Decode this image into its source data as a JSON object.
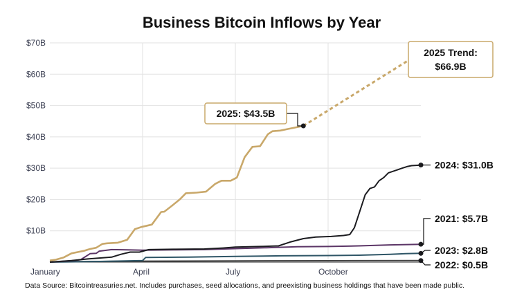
{
  "chart_data": {
    "type": "line",
    "title": "Business Bitcoin Inflows by Year",
    "source_note": "Data Source: Bitcointreasuries.net. Includes purchases, seed allocations, and preexisting business holdings that have been made public.",
    "x_domain": [
      0,
      12
    ],
    "ylim": [
      0,
      70
    ],
    "y_ticks": [
      {
        "value": 10,
        "label": "$10B"
      },
      {
        "value": 20,
        "label": "$20B"
      },
      {
        "value": 30,
        "label": "$30B"
      },
      {
        "value": 40,
        "label": "$40B"
      },
      {
        "value": 50,
        "label": "$50B"
      },
      {
        "value": 60,
        "label": "$60B"
      },
      {
        "value": 70,
        "label": "$70B"
      }
    ],
    "x_ticks": [
      {
        "value": 0,
        "label": "January"
      },
      {
        "value": 3,
        "label": "April"
      },
      {
        "value": 6,
        "label": "July"
      },
      {
        "value": 9,
        "label": "October"
      }
    ],
    "vertical_grid": [
      3,
      6,
      9
    ],
    "series": [
      {
        "name": "2025",
        "color": "#c9a86a",
        "x": [
          0,
          0.2,
          0.45,
          0.7,
          0.9,
          1.1,
          1.3,
          1.5,
          1.7,
          1.85,
          2.0,
          2.2,
          2.5,
          2.75,
          2.95,
          3.3,
          3.6,
          3.7,
          3.95,
          4.2,
          4.4,
          4.75,
          5.05,
          5.35,
          5.55,
          5.85,
          6.05,
          6.3,
          6.55,
          6.8,
          7.05,
          7.2,
          7.45,
          7.7,
          8.2
        ],
        "values": [
          0.5,
          0.8,
          1.5,
          2.8,
          3.2,
          3.6,
          4.2,
          4.6,
          5.8,
          6.0,
          6.1,
          6.2,
          7.1,
          10.5,
          11.2,
          12.0,
          16.0,
          16.1,
          18.0,
          20.0,
          22.0,
          22.2,
          22.5,
          25.0,
          26.0,
          26.0,
          27.0,
          33.5,
          36.8,
          37.0,
          40.8,
          41.8,
          42.0,
          42.5,
          43.5
        ],
        "end_label": "2025: $43.5B",
        "callout_label": "2025 Trend:",
        "callout_value": "$66.9B",
        "trend": {
          "x": [
            8.2,
            12
          ],
          "values": [
            43.5,
            66.9
          ]
        }
      },
      {
        "name": "2024",
        "color": "#1c1c20",
        "x": [
          0,
          0.7,
          1.2,
          1.6,
          2.0,
          2.3,
          2.6,
          2.9,
          3.2,
          4.0,
          5.0,
          5.6,
          6.0,
          6.8,
          7.4,
          7.8,
          8.2,
          8.6,
          9.1,
          9.5,
          9.7,
          9.85,
          10.0,
          10.2,
          10.35,
          10.5,
          10.65,
          10.8,
          10.95,
          11.1,
          11.25,
          11.4,
          11.55,
          11.7,
          11.85,
          12.0
        ],
        "values": [
          0,
          0.5,
          1.0,
          1.3,
          1.6,
          2.5,
          3.2,
          3.2,
          4.0,
          4.1,
          4.2,
          4.5,
          4.8,
          5.0,
          5.2,
          6.5,
          7.5,
          8.0,
          8.2,
          8.5,
          8.8,
          11.0,
          15.5,
          21.5,
          23.5,
          24.0,
          26.0,
          27.0,
          28.5,
          29.0,
          29.5,
          30.0,
          30.5,
          30.8,
          30.9,
          31.0
        ],
        "end_label": "2024: $31.0B"
      },
      {
        "name": "2021",
        "color": "#5b3566",
        "x": [
          0,
          0.8,
          1.0,
          1.3,
          1.5,
          1.6,
          2.0,
          2.5,
          3.0,
          4.0,
          5.0,
          6.0,
          7.0,
          8.0,
          9.0,
          10.0,
          11.0,
          12.0
        ],
        "values": [
          0,
          0.5,
          0.8,
          2.7,
          2.8,
          3.5,
          4.0,
          3.9,
          3.8,
          3.9,
          4.0,
          4.3,
          4.6,
          4.9,
          5.0,
          5.2,
          5.5,
          5.7
        ],
        "end_label": "2021: $5.7B"
      },
      {
        "name": "2023",
        "color": "#2e5566",
        "x": [
          0,
          1.5,
          3.0,
          3.1,
          4.5,
          6.0,
          7.5,
          9.0,
          10.0,
          11.0,
          11.5,
          12.0
        ],
        "values": [
          0,
          0.2,
          0.5,
          1.5,
          1.6,
          1.8,
          2.0,
          2.1,
          2.2,
          2.5,
          2.7,
          2.8
        ],
        "end_label": "2023: $2.8B"
      },
      {
        "name": "2022",
        "color": "#444444",
        "x": [
          0,
          3.0,
          6.0,
          9.0,
          12.0
        ],
        "values": [
          0.1,
          0.3,
          0.4,
          0.45,
          0.5
        ],
        "end_label": "2022: $0.5B"
      }
    ]
  }
}
